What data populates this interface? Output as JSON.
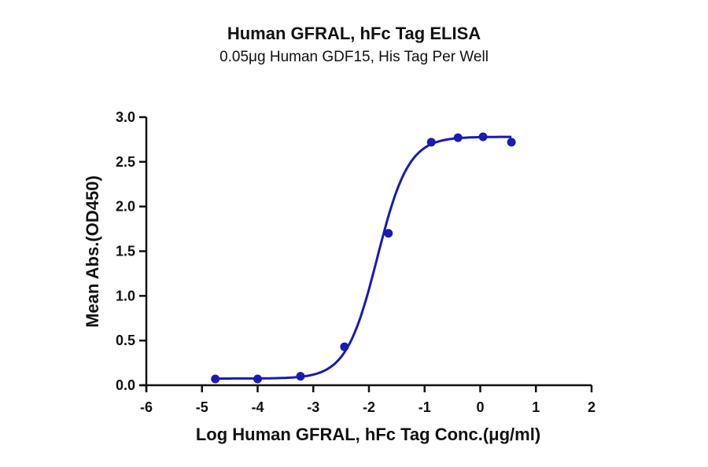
{
  "chart_data": {
    "type": "scatter",
    "title": "Human GFRAL, hFc Tag ELISA",
    "subtitle": "0.05μg Human GDF15, His Tag Per Well",
    "xlabel": "Log Human GFRAL, hFc Tag Conc.(μg/ml)",
    "ylabel": "Mean Abs.(OD450)",
    "xlim": [
      -6,
      2
    ],
    "ylim": [
      0,
      3.0
    ],
    "x_ticks": [
      "-6",
      "-5",
      "-4",
      "-3",
      "-2",
      "-1",
      "0",
      "1",
      "2"
    ],
    "y_ticks": [
      "0.0",
      "0.5",
      "1.0",
      "1.5",
      "2.0",
      "2.5",
      "3.0"
    ],
    "grid": false,
    "series": [
      {
        "name": "Human GFRAL, hFc Tag",
        "color": "#1a1ab4",
        "x": [
          -4.76,
          -4.0,
          -3.23,
          -2.44,
          -1.65,
          -0.88,
          -0.4,
          0.05,
          0.56
        ],
        "y": [
          0.07,
          0.07,
          0.1,
          0.43,
          1.7,
          2.72,
          2.77,
          2.78,
          2.72
        ],
        "fit": "4PL sigmoid"
      }
    ]
  }
}
